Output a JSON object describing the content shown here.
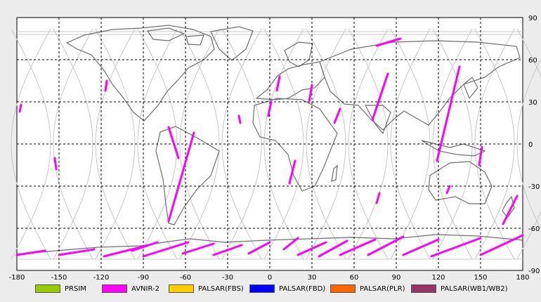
{
  "map": {
    "lon_range": [
      -180,
      180
    ],
    "lat_range": [
      -90,
      90
    ],
    "x_ticks": [
      "-180",
      "-150",
      "-120",
      "-90",
      "-60",
      "-30",
      "0",
      "30",
      "60",
      "90",
      "120",
      "150",
      "180"
    ],
    "y_ticks": [
      "90",
      "60",
      "30",
      "0",
      "-30",
      "-60",
      "-90"
    ],
    "grid": "dashed, every 30 degrees",
    "colors": {
      "frame_bg": "#ffffff",
      "grid": "#000000",
      "coast": "#6e6e6e",
      "orbit": "#c8c8c8",
      "footprint": "#ff00ff"
    }
  },
  "legend": [
    {
      "label": "PRSIM",
      "color": "#99cc00"
    },
    {
      "label": "AVNIR-2",
      "color": "#ff00ff"
    },
    {
      "label": "PALSAR(FBS)",
      "color": "#ffcc00"
    },
    {
      "label": "PALSAR(FBD)",
      "color": "#0000ff"
    },
    {
      "label": "PALSAR(PLR)",
      "color": "#ff6600"
    },
    {
      "label": "PALSAR(WB1/WB2)",
      "color": "#993366"
    }
  ],
  "footprints": [
    {
      "lon": [
        -178,
        -177
      ],
      "lat": [
        23,
        28
      ]
    },
    {
      "lon": [
        -153,
        -152
      ],
      "lat": [
        -10,
        -18
      ]
    },
    {
      "lon": [
        -117,
        -116
      ],
      "lat": [
        38,
        45
      ]
    },
    {
      "lon": [
        -72,
        -65
      ],
      "lat": [
        12,
        -10
      ]
    },
    {
      "lon": [
        -54,
        -72
      ],
      "lat": [
        8,
        -55
      ]
    },
    {
      "lon": [
        -22,
        -21
      ],
      "lat": [
        20,
        15
      ]
    },
    {
      "lon": [
        7,
        5
      ],
      "lat": [
        48,
        38
      ]
    },
    {
      "lon": [
        1,
        -1
      ],
      "lat": [
        30,
        20
      ]
    },
    {
      "lon": [
        30,
        28
      ],
      "lat": [
        42,
        30
      ]
    },
    {
      "lon": [
        18,
        14
      ],
      "lat": [
        -12,
        -28
      ]
    },
    {
      "lon": [
        50,
        46
      ],
      "lat": [
        25,
        15
      ]
    },
    {
      "lon": [
        84,
        73
      ],
      "lat": [
        50,
        17
      ]
    },
    {
      "lon": [
        93,
        76
      ],
      "lat": [
        75,
        70
      ]
    },
    {
      "lon": [
        78,
        76
      ],
      "lat": [
        -35,
        -42
      ]
    },
    {
      "lon": [
        135,
        119
      ],
      "lat": [
        55,
        -12
      ]
    },
    {
      "lon": [
        151,
        149
      ],
      "lat": [
        -2,
        -15
      ]
    },
    {
      "lon": [
        128,
        126
      ],
      "lat": [
        -30,
        -35
      ]
    },
    {
      "lon": [
        176,
        166
      ],
      "lat": [
        -37,
        -57
      ]
    }
  ],
  "antarctic_passes": [
    {
      "lon": [
        -180,
        -160
      ],
      "lat": [
        -79,
        -76
      ]
    },
    {
      "lon": [
        -150,
        -125
      ],
      "lat": [
        -79,
        -75
      ]
    },
    {
      "lon": [
        -118,
        -90
      ],
      "lat": [
        -80,
        -73
      ]
    },
    {
      "lon": [
        -98,
        -80
      ],
      "lat": [
        -76,
        -70
      ]
    },
    {
      "lon": [
        -90,
        -58
      ],
      "lat": [
        -80,
        -70
      ]
    },
    {
      "lon": [
        -62,
        -40
      ],
      "lat": [
        -78,
        -71
      ]
    },
    {
      "lon": [
        -40,
        -20
      ],
      "lat": [
        -79,
        -72
      ]
    },
    {
      "lon": [
        -15,
        0
      ],
      "lat": [
        -78,
        -70
      ]
    },
    {
      "lon": [
        10,
        20
      ],
      "lat": [
        -75,
        -67
      ]
    },
    {
      "lon": [
        20,
        40
      ],
      "lat": [
        -79,
        -70
      ]
    },
    {
      "lon": [
        35,
        55
      ],
      "lat": [
        -80,
        -69
      ]
    },
    {
      "lon": [
        50,
        75
      ],
      "lat": [
        -79,
        -68
      ]
    },
    {
      "lon": [
        70,
        95
      ],
      "lat": [
        -79,
        -66
      ]
    },
    {
      "lon": [
        95,
        120
      ],
      "lat": [
        -79,
        -68
      ]
    },
    {
      "lon": [
        115,
        150
      ],
      "lat": [
        -80,
        -67
      ]
    },
    {
      "lon": [
        150,
        180
      ],
      "lat": [
        -79,
        -65
      ]
    }
  ]
}
